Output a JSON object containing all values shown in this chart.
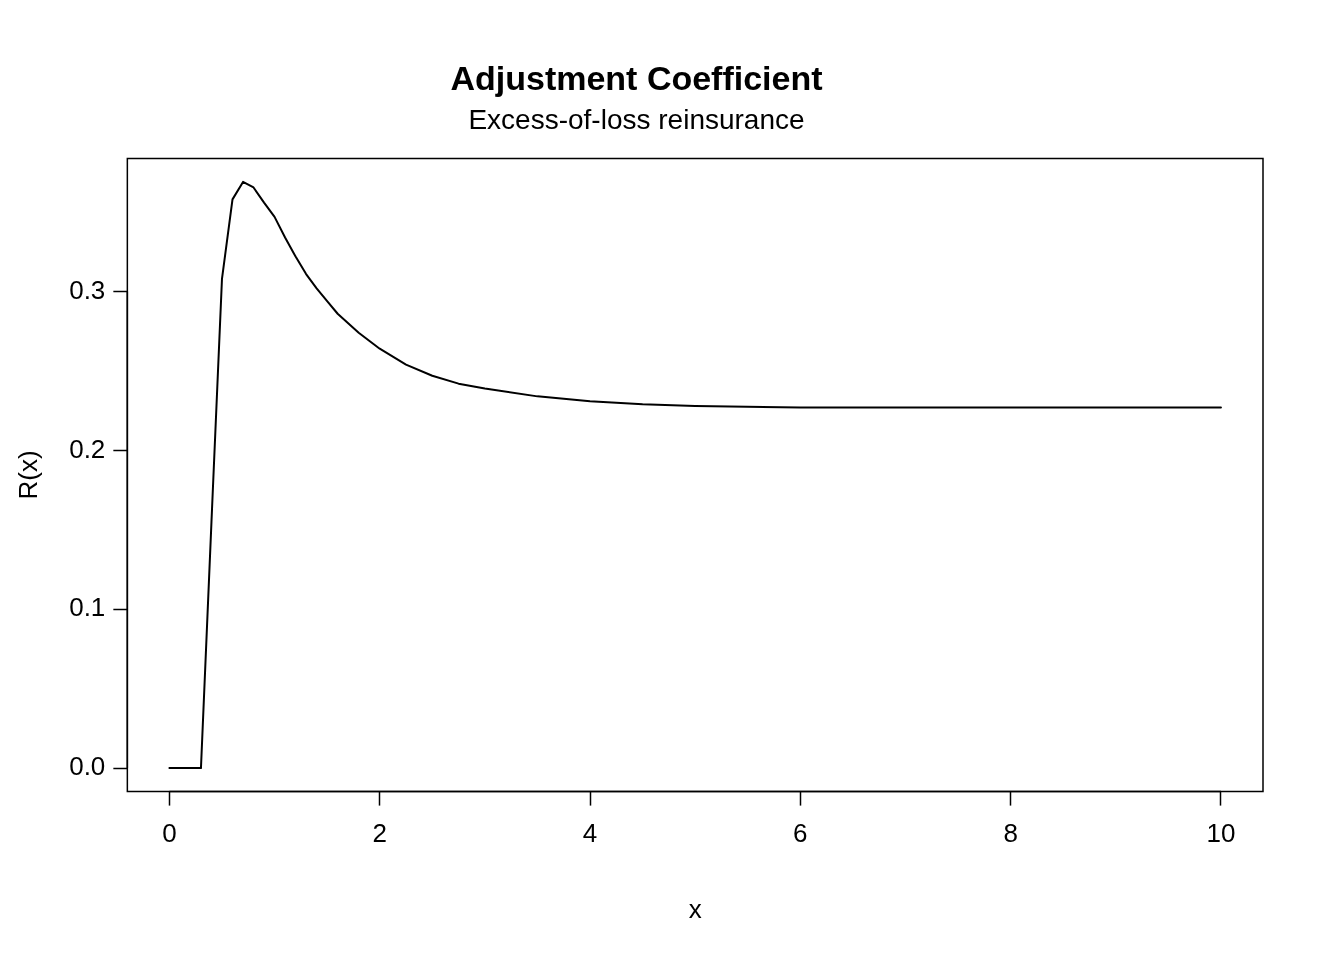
{
  "chart_data": {
    "type": "line",
    "title": "Adjustment Coefficient",
    "subtitle": "Excess-of-loss reinsurance",
    "xlabel": "x",
    "ylabel": "R(x)",
    "x": [
      0,
      0.1,
      0.2,
      0.3,
      0.4,
      0.5,
      0.6,
      0.7,
      0.8,
      0.9,
      1.0,
      1.1,
      1.2,
      1.3,
      1.4,
      1.5,
      1.6,
      1.7,
      1.8,
      1.9,
      2.0,
      2.25,
      2.5,
      2.75,
      3.0,
      3.5,
      4.0,
      4.5,
      5.0,
      6.0,
      7.0,
      8.0,
      9.0,
      10.0
    ],
    "series": [
      {
        "color": "#000000",
        "values": [
          0,
          0,
          0,
          0,
          0.155,
          0.308,
          0.358,
          0.369,
          0.3655,
          0.356,
          0.347,
          0.334,
          0.322,
          0.311,
          0.302,
          0.294,
          0.286,
          0.28,
          0.274,
          0.269,
          0.264,
          0.254,
          0.247,
          0.242,
          0.239,
          0.234,
          0.231,
          0.229,
          0.228,
          0.227,
          0.227,
          0.227,
          0.227,
          0.227
        ]
      }
    ],
    "xlim": [
      -0.4,
      10.4
    ],
    "ylim": [
      -0.0148,
      0.3838
    ],
    "xticks": [
      0,
      2,
      4,
      6,
      8,
      10
    ],
    "yticks": [
      {
        "value": 0,
        "label": "0.0"
      },
      0.1,
      0.2,
      0.3
    ],
    "grid": false,
    "legend": false,
    "marker": "none",
    "line_style": "solid"
  }
}
